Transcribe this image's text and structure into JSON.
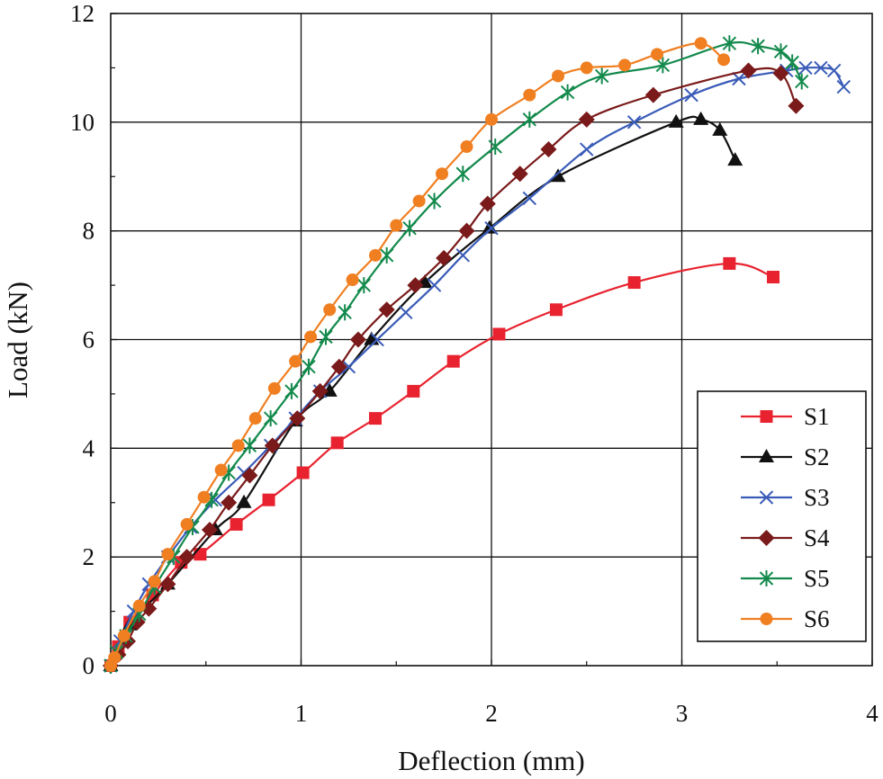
{
  "chart_data": {
    "type": "line",
    "title": "",
    "xlabel": "Deflection (mm)",
    "ylabel": "Load (kN)",
    "xlim": [
      0,
      4
    ],
    "ylim": [
      0,
      12
    ],
    "xticks": [
      "0",
      "1",
      "2",
      "3",
      "4"
    ],
    "yticks": [
      "0",
      "2",
      "4",
      "6",
      "8",
      "10",
      "12"
    ],
    "grid": true,
    "legend_position": "bottom-right",
    "series": [
      {
        "name": "S1",
        "color": "#e8232f",
        "marker": "square",
        "x": [
          0,
          0.04,
          0.1,
          0.22,
          0.37,
          0.47,
          0.66,
          0.83,
          1.01,
          1.19,
          1.39,
          1.59,
          1.8,
          2.04,
          2.34,
          2.75,
          3.25,
          3.48
        ],
        "y": [
          0,
          0.35,
          0.8,
          1.3,
          1.9,
          2.05,
          2.6,
          3.05,
          3.55,
          4.1,
          4.55,
          5.05,
          5.6,
          6.1,
          6.55,
          7.05,
          7.4,
          7.15
        ]
      },
      {
        "name": "S2",
        "color": "#111111",
        "marker": "triangle",
        "x": [
          0,
          0.1,
          0.3,
          0.55,
          0.7,
          0.97,
          1.15,
          1.37,
          1.65,
          1.99,
          2.35,
          2.97,
          3.1,
          3.2,
          3.28
        ],
        "y": [
          0,
          0.75,
          1.5,
          2.5,
          3.0,
          4.5,
          5.05,
          6.0,
          7.05,
          8.05,
          9.0,
          10.0,
          10.05,
          9.85,
          9.3
        ]
      },
      {
        "name": "S3",
        "color": "#3a5cb8",
        "marker": "cross",
        "x": [
          0,
          0.05,
          0.12,
          0.2,
          0.3,
          0.42,
          0.55,
          0.7,
          0.84,
          0.97,
          1.1,
          1.25,
          1.4,
          1.55,
          1.7,
          1.85,
          2.0,
          2.2,
          2.5,
          2.75,
          3.05,
          3.3,
          3.55,
          3.65,
          3.73,
          3.8,
          3.85
        ],
        "y": [
          0,
          0.45,
          1.0,
          1.5,
          2.0,
          2.55,
          3.05,
          3.55,
          4.05,
          4.55,
          5.05,
          5.5,
          6.0,
          6.5,
          7.0,
          7.55,
          8.05,
          8.6,
          9.5,
          10.0,
          10.5,
          10.8,
          10.95,
          11.0,
          11.0,
          10.95,
          10.65
        ]
      },
      {
        "name": "S4",
        "color": "#7a1a1a",
        "marker": "diamond",
        "x": [
          0,
          0.04,
          0.09,
          0.14,
          0.2,
          0.3,
          0.4,
          0.52,
          0.62,
          0.73,
          0.85,
          0.98,
          1.1,
          1.2,
          1.3,
          1.45,
          1.6,
          1.75,
          1.87,
          1.98,
          2.15,
          2.3,
          2.5,
          2.85,
          3.35,
          3.52,
          3.6
        ],
        "y": [
          0,
          0.2,
          0.45,
          0.8,
          1.05,
          1.5,
          2.0,
          2.5,
          3.0,
          3.5,
          4.05,
          4.55,
          5.05,
          5.5,
          6.0,
          6.55,
          7.0,
          7.5,
          8.0,
          8.5,
          9.05,
          9.5,
          10.05,
          10.5,
          10.95,
          10.9,
          10.3
        ]
      },
      {
        "name": "S5",
        "color": "#138a4c",
        "marker": "asterisk",
        "x": [
          0,
          0.03,
          0.08,
          0.15,
          0.23,
          0.33,
          0.43,
          0.53,
          0.62,
          0.73,
          0.84,
          0.95,
          1.04,
          1.13,
          1.23,
          1.33,
          1.45,
          1.57,
          1.7,
          1.85,
          2.02,
          2.2,
          2.4,
          2.58,
          2.9,
          3.25,
          3.4,
          3.52,
          3.58,
          3.63
        ],
        "y": [
          0,
          0.25,
          0.55,
          0.95,
          1.45,
          2.0,
          2.55,
          3.05,
          3.55,
          4.05,
          4.55,
          5.05,
          5.5,
          6.05,
          6.5,
          7.0,
          7.55,
          8.05,
          8.55,
          9.05,
          9.55,
          10.05,
          10.55,
          10.85,
          11.05,
          11.45,
          11.4,
          11.3,
          11.1,
          10.75
        ]
      },
      {
        "name": "S6",
        "color": "#f07f22",
        "marker": "circle",
        "x": [
          0,
          0.02,
          0.07,
          0.15,
          0.23,
          0.3,
          0.4,
          0.49,
          0.58,
          0.67,
          0.76,
          0.86,
          0.97,
          1.05,
          1.15,
          1.27,
          1.39,
          1.5,
          1.62,
          1.74,
          1.87,
          2.0,
          2.2,
          2.35,
          2.5,
          2.7,
          2.87,
          3.1,
          3.22
        ],
        "y": [
          0,
          0.15,
          0.55,
          1.1,
          1.55,
          2.05,
          2.6,
          3.1,
          3.6,
          4.05,
          4.55,
          5.1,
          5.6,
          6.05,
          6.55,
          7.1,
          7.55,
          8.1,
          8.55,
          9.05,
          9.55,
          10.05,
          10.5,
          10.85,
          11.0,
          11.05,
          11.25,
          11.45,
          11.15
        ]
      }
    ]
  }
}
